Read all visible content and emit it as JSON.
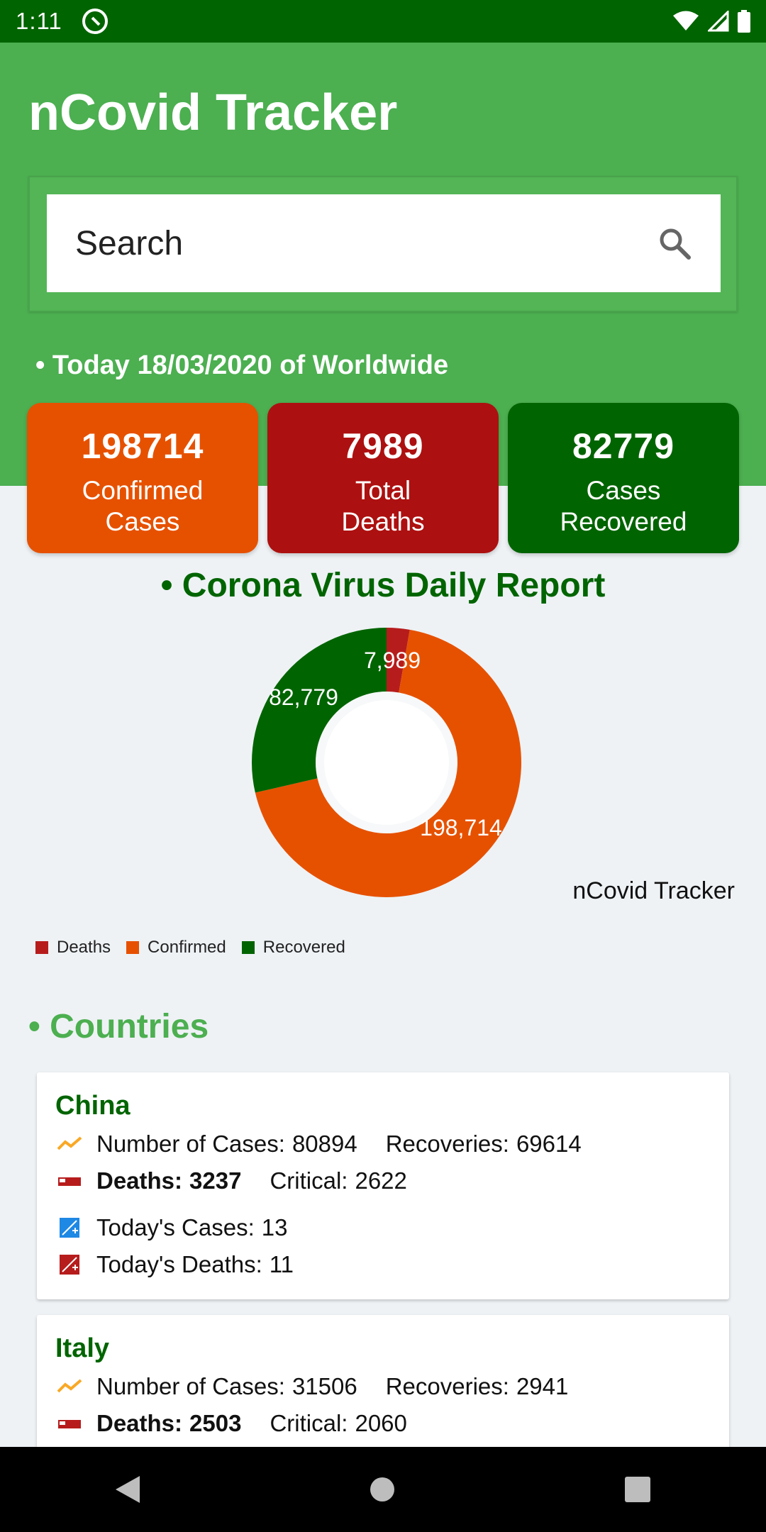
{
  "status_bar": {
    "time": "1:11"
  },
  "app": {
    "title": "nCovid Tracker"
  },
  "search": {
    "placeholder": "Search"
  },
  "today": {
    "text": "• Today 18/03/2020 of Worldwide"
  },
  "stats": [
    {
      "value": "198714",
      "label_line1": "Confirmed",
      "label_line2": "Cases",
      "color": "#e65100"
    },
    {
      "value": "7989",
      "label_line1": "Total",
      "label_line2": "Deaths",
      "color": "#ad1010"
    },
    {
      "value": "82779",
      "label_line1": "Cases",
      "label_line2": "Recovered",
      "color": "#006400"
    }
  ],
  "report": {
    "title": "• Corona Virus Daily Report",
    "caption": "nCovid Tracker"
  },
  "chart_data": {
    "type": "pie",
    "categories": [
      "Deaths",
      "Confirmed",
      "Recovered"
    ],
    "values": [
      7989,
      198714,
      82779
    ],
    "value_labels": [
      "7,989",
      "198,714",
      "82,779"
    ],
    "colors": [
      "#b71c1c",
      "#e65100",
      "#006400"
    ],
    "legend": [
      "Deaths",
      "Confirmed",
      "Recovered"
    ],
    "legend_position": "bottom-left"
  },
  "countries": {
    "title": "• Countries",
    "labels": {
      "cases": "Number of Cases:",
      "recoveries": "Recoveries:",
      "deaths": "Deaths:",
      "critical": "Critical:",
      "today_cases": "Today's Cases:",
      "today_deaths": "Today's Deaths:"
    },
    "items": [
      {
        "name": "China",
        "cases": "80894",
        "recoveries": "69614",
        "deaths": "3237",
        "critical": "2622",
        "today_cases": "13",
        "today_deaths": "11"
      },
      {
        "name": "Italy",
        "cases": "31506",
        "recoveries": "2941",
        "deaths": "2503",
        "critical": "2060"
      }
    ]
  }
}
